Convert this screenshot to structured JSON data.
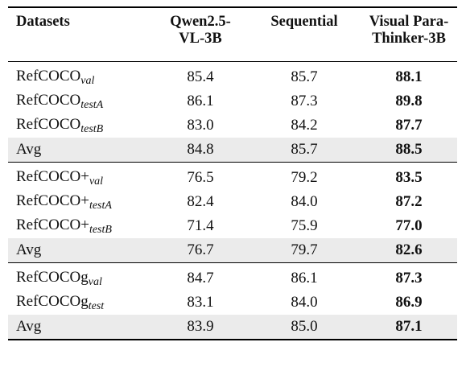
{
  "table": {
    "header": [
      [
        "Datasets"
      ],
      [
        "Qwen2.5-",
        "VL-3B"
      ],
      [
        "Sequential"
      ],
      [
        "Visual Para-",
        "Thinker-3B"
      ]
    ],
    "groups": [
      {
        "rows": [
          {
            "name": "RefCOCO",
            "sub": "val",
            "cells": [
              "85.4",
              "85.7",
              "88.1"
            ]
          },
          {
            "name": "RefCOCO",
            "sub": "testA",
            "cells": [
              "86.1",
              "87.3",
              "89.8"
            ]
          },
          {
            "name": "RefCOCO",
            "sub": "testB",
            "cells": [
              "83.0",
              "84.2",
              "87.7"
            ]
          },
          {
            "name": "Avg",
            "cells": [
              "84.8",
              "85.7",
              "88.5"
            ]
          }
        ]
      },
      {
        "rows": [
          {
            "name": "RefCOCO+",
            "sub": "val",
            "cells": [
              "76.5",
              "79.2",
              "83.5"
            ]
          },
          {
            "name": "RefCOCO+",
            "sub": "testA",
            "cells": [
              "82.4",
              "84.0",
              "87.2"
            ]
          },
          {
            "name": "RefCOCO+",
            "sub": "testB",
            "cells": [
              "71.4",
              "75.9",
              "77.0"
            ]
          },
          {
            "name": "Avg",
            "cells": [
              "76.7",
              "79.7",
              "82.6"
            ]
          }
        ]
      },
      {
        "rows": [
          {
            "name": "RefCOCOg",
            "sub": "val",
            "cells": [
              "84.7",
              "86.1",
              "87.3"
            ]
          },
          {
            "name": "RefCOCOg",
            "sub": "test",
            "cells": [
              "83.1",
              "84.0",
              "86.9"
            ]
          },
          {
            "name": "Avg",
            "cells": [
              "83.9",
              "85.0",
              "87.1"
            ]
          }
        ]
      }
    ]
  }
}
